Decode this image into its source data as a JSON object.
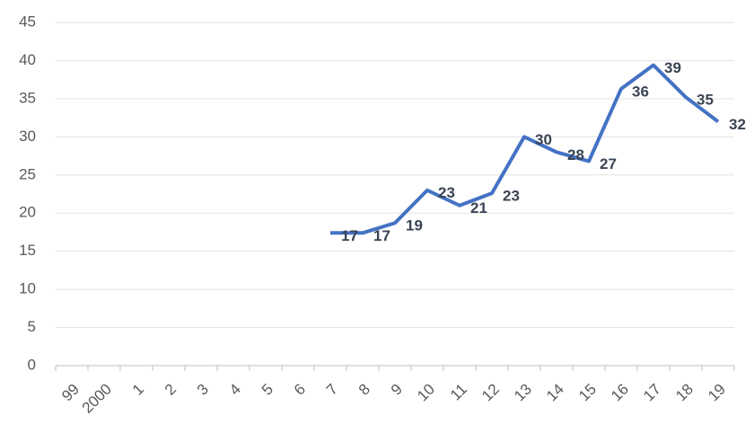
{
  "chart_data": {
    "type": "line",
    "categories": [
      "99",
      "2000",
      "1",
      "2",
      "3",
      "4",
      "5",
      "6",
      "7",
      "8",
      "9",
      "10",
      "11",
      "12",
      "13",
      "14",
      "15",
      "16",
      "17",
      "18",
      "19"
    ],
    "series": [
      {
        "color": "#4472c4",
        "values": [
          null,
          null,
          null,
          null,
          null,
          null,
          null,
          null,
          17.4,
          17.4,
          18.7,
          23,
          21,
          22.6,
          30,
          28,
          26.8,
          36.3,
          39.4,
          35.2,
          32
        ],
        "value_labels": [
          null,
          null,
          null,
          null,
          null,
          null,
          null,
          null,
          "17",
          "17",
          "19",
          "23",
          "21",
          "23",
          "30",
          "28",
          "27",
          "36",
          "39",
          "35",
          "32"
        ]
      }
    ],
    "ylim": [
      0,
      45
    ],
    "yticks": [
      0,
      5,
      10,
      15,
      20,
      25,
      30,
      35,
      40,
      45
    ],
    "grid": true
  }
}
